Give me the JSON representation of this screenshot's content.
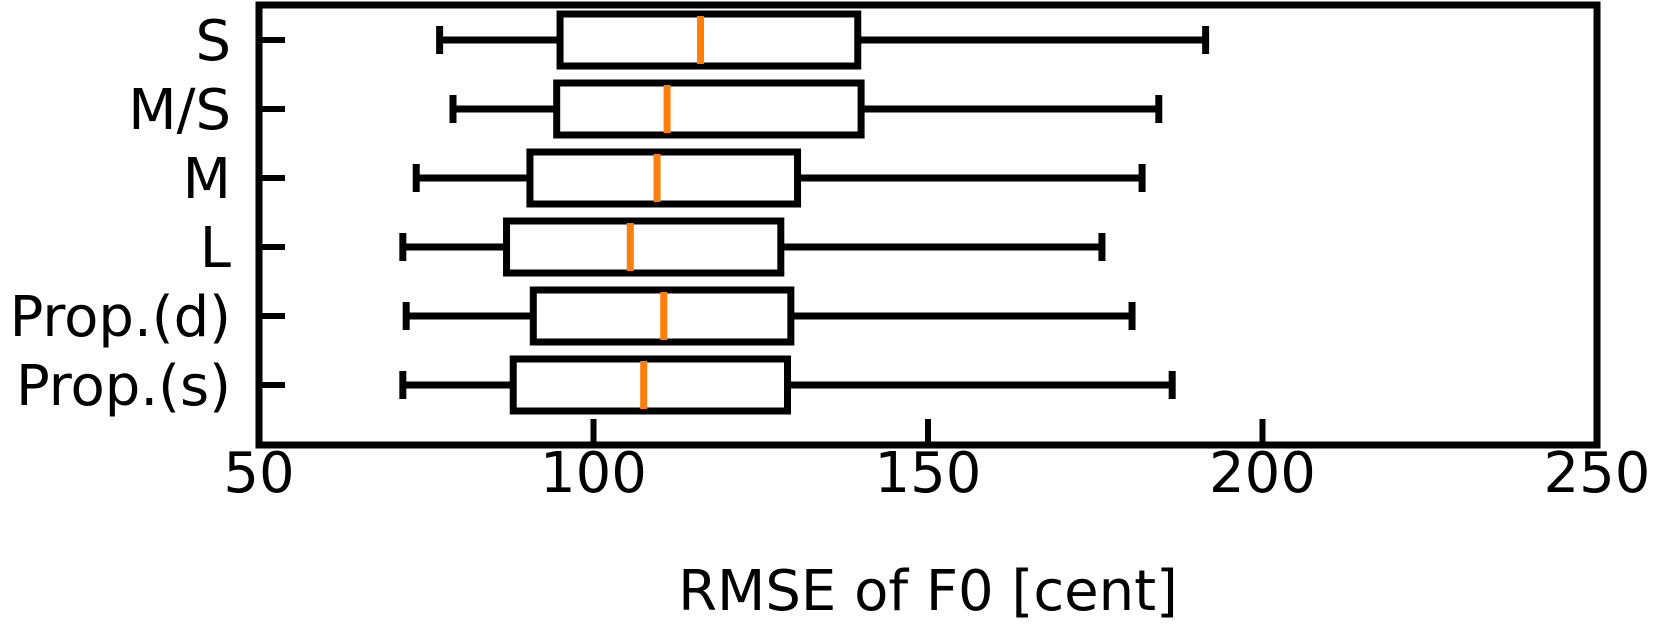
{
  "chart_data": {
    "type": "boxplot",
    "orientation": "horizontal",
    "title": "",
    "xlabel": "RMSE of F0 [cent]",
    "ylabel": "",
    "xlim": [
      50,
      250
    ],
    "xticks": [
      50,
      100,
      150,
      200,
      250
    ],
    "grid": false,
    "legend": "none",
    "colors": {
      "box": "#000000",
      "median": "#ff7f0e"
    },
    "categories": [
      "S",
      "M/S",
      "M",
      "L",
      "Prop.(d)",
      "Prop.(s)"
    ],
    "boxes": [
      {
        "label": "S",
        "whislo": 77,
        "q1": 95,
        "med": 116,
        "q3": 139.5,
        "whishi": 191.5
      },
      {
        "label": "M/S",
        "whislo": 79,
        "q1": 94.5,
        "med": 111,
        "q3": 140,
        "whishi": 184.5
      },
      {
        "label": "M",
        "whislo": 73.5,
        "q1": 90.5,
        "med": 109.5,
        "q3": 130.5,
        "whishi": 182
      },
      {
        "label": "L",
        "whislo": 71.5,
        "q1": 87,
        "med": 105.5,
        "q3": 128,
        "whishi": 176
      },
      {
        "label": "Prop.(d)",
        "whislo": 72,
        "q1": 91,
        "med": 110.5,
        "q3": 129.5,
        "whishi": 180.5
      },
      {
        "label": "Prop.(s)",
        "whislo": 71.5,
        "q1": 88,
        "med": 107.5,
        "q3": 129,
        "whishi": 186.5
      }
    ]
  }
}
